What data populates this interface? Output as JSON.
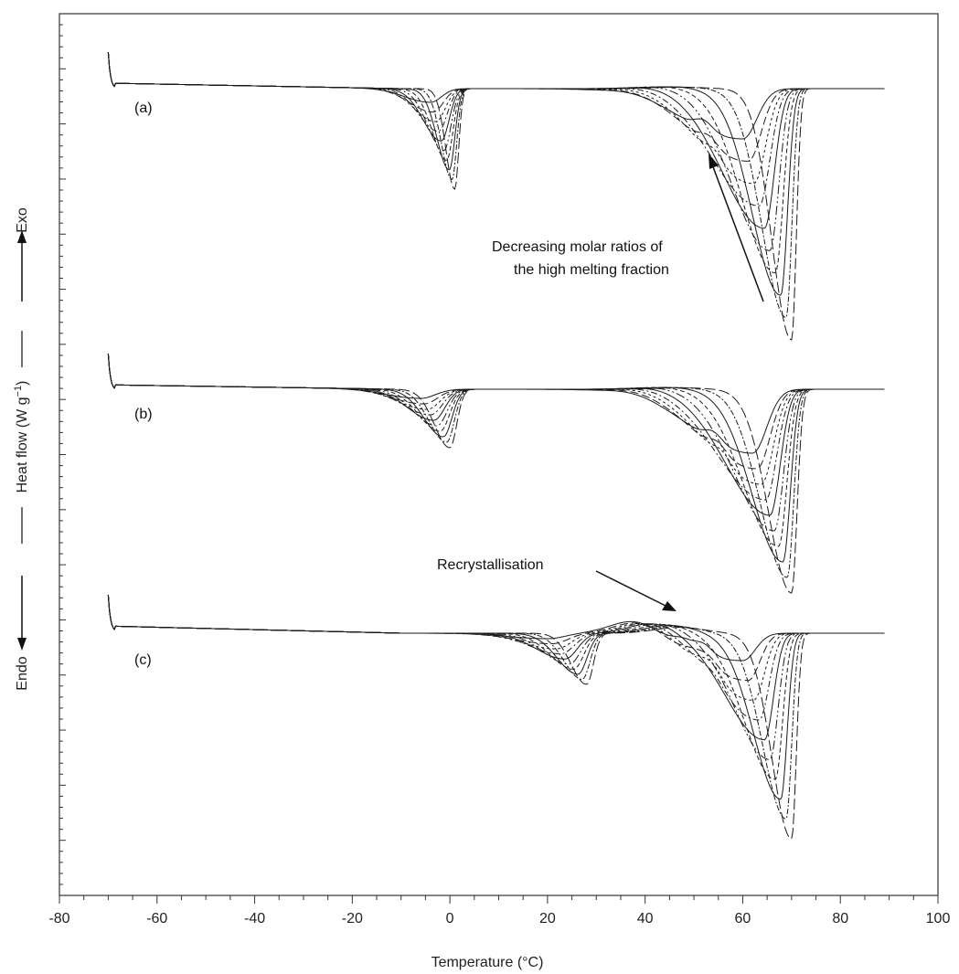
{
  "chart_data": {
    "type": "line",
    "title": "",
    "xlabel": "Temperature (°C)",
    "ylabel_parts": {
      "before": "Heat flow (W g",
      "sup": "−1",
      "after": ")"
    },
    "exo_label": "Exo",
    "endo_label": "Endo",
    "xlim": [
      -80,
      100
    ],
    "x_ticks": [
      "-80",
      "-60",
      "-40",
      "-20",
      "0",
      "20",
      "40",
      "60",
      "80",
      "100"
    ],
    "y_tick_labels_shown": false,
    "grid": false,
    "annotations": {
      "molar": [
        "Decreasing molar ratios of",
        "the high melting fraction"
      ],
      "recryst": "Recrystallisation"
    },
    "panels": [
      {
        "label": "(a)",
        "baseline_x": 90,
        "low_peak": {
          "center_range": [
            -4,
            1
          ],
          "count": 9
        },
        "high_peak": {
          "center_range": [
            60,
            70
          ],
          "count": 10
        }
      },
      {
        "label": "(b)",
        "baseline_x": 90,
        "low_peak": {
          "center_range": [
            -6,
            0
          ],
          "count": 9
        },
        "high_peak": {
          "center_range": [
            62,
            70
          ],
          "count": 10
        }
      },
      {
        "label": "(c)",
        "baseline_x": 90,
        "low_peak": {
          "center_range": [
            20,
            28
          ],
          "count": 9
        },
        "recryst_peak_x": 42,
        "high_peak": {
          "center_range": [
            60,
            70
          ],
          "count": 10
        }
      }
    ]
  }
}
